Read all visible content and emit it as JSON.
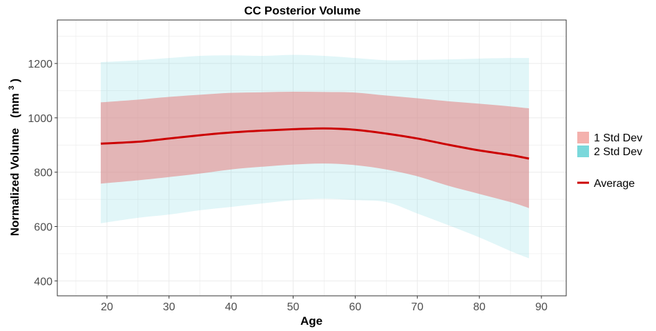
{
  "chart_data": {
    "type": "area",
    "title": "CC Posterior Volume",
    "xlabel": "Age",
    "ylabel": "Normalized Volume",
    "ylabel_unit": "(mm",
    "ylabel_unit_sup": "3",
    "ylabel_unit_close": ")",
    "xlim": [
      12,
      94
    ],
    "ylim": [
      345,
      1360
    ],
    "xticks": [
      20,
      30,
      40,
      50,
      60,
      70,
      80,
      90
    ],
    "yticks": [
      400,
      600,
      800,
      1000,
      1200
    ],
    "grid": true,
    "legend_position": "right",
    "x": [
      19,
      25,
      30,
      35,
      40,
      45,
      50,
      55,
      60,
      65,
      70,
      75,
      80,
      85,
      88
    ],
    "series": [
      {
        "name": "2 Std Dev",
        "color": "#7fd8df",
        "lower": [
          612,
          632,
          644,
          660,
          672,
          685,
          697,
          702,
          697,
          690,
          648,
          605,
          560,
          510,
          483
        ],
        "upper": [
          1205,
          1212,
          1220,
          1228,
          1230,
          1228,
          1232,
          1228,
          1220,
          1212,
          1213,
          1215,
          1218,
          1220,
          1220
        ]
      },
      {
        "name": "1 Std Dev",
        "color": "#e57f7f",
        "lower": [
          758,
          770,
          782,
          795,
          810,
          820,
          828,
          832,
          826,
          810,
          785,
          750,
          720,
          690,
          668
        ],
        "upper": [
          1057,
          1067,
          1077,
          1085,
          1092,
          1094,
          1096,
          1095,
          1093,
          1082,
          1072,
          1061,
          1052,
          1042,
          1035
        ]
      },
      {
        "name": "Average",
        "color": "#cc0000",
        "values": [
          905,
          912,
          924,
          936,
          946,
          953,
          958,
          961,
          956,
          942,
          924,
          901,
          880,
          863,
          850
        ]
      }
    ],
    "legend": [
      {
        "label": "1 Std Dev",
        "color": "#f4b1ad"
      },
      {
        "label": "2 Std Dev",
        "color": "#7ad8db"
      },
      {
        "label": "Average",
        "color": "#cc0000"
      }
    ]
  }
}
